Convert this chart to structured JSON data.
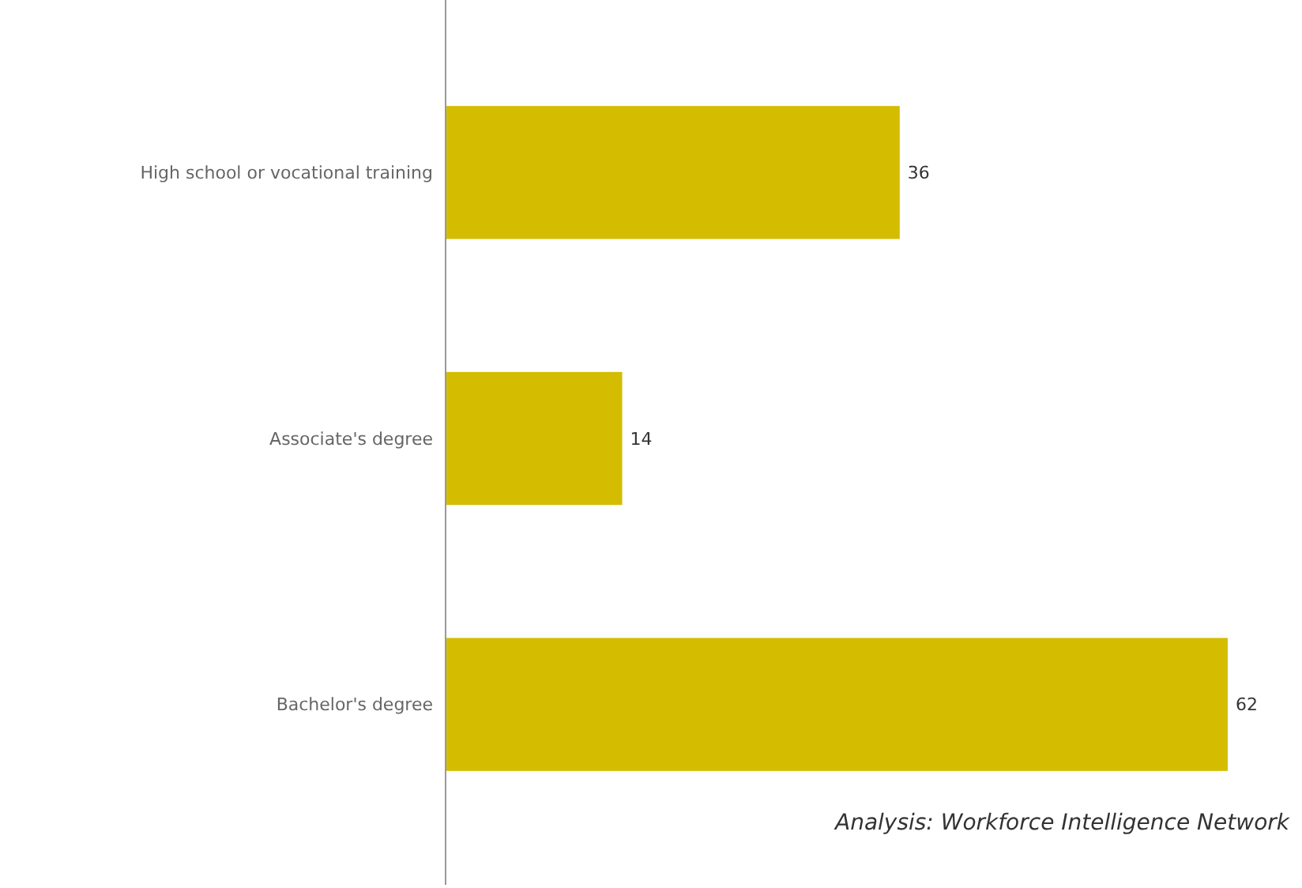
{
  "chart_data": {
    "type": "bar",
    "orientation": "horizontal",
    "categories": [
      "High school or vocational training",
      "Associate's degree",
      "Bachelor's degree"
    ],
    "values": [
      36,
      14,
      62
    ],
    "color": "#d4bd00",
    "data_labels": true,
    "annotations": [
      "Analysis: Workforce Intelligence Network"
    ]
  }
}
